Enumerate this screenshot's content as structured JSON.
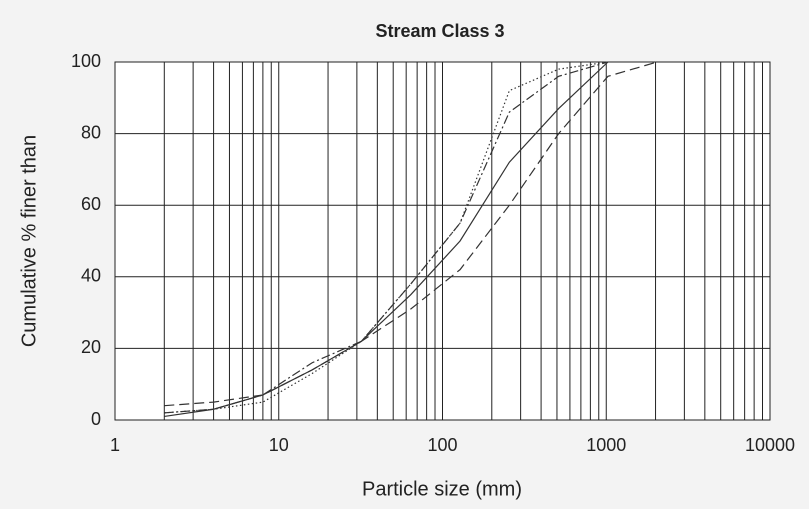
{
  "chart_data": {
    "type": "line",
    "title": "Stream Class 3",
    "x_label": "Particle size (mm)",
    "y_label": "Cumulative % finer than",
    "x": [
      2,
      4,
      8,
      16,
      32,
      64,
      128,
      256,
      512,
      1024,
      2048
    ],
    "series": [
      {
        "color": "#333333",
        "line_style": "solid",
        "values": [
          1,
          3,
          7,
          14,
          22,
          35,
          50,
          72,
          87,
          100,
          null
        ]
      },
      {
        "color": "#333333",
        "line_style": "dashed",
        "values": [
          4,
          5,
          7,
          14,
          22,
          31,
          42,
          60,
          80,
          96,
          100
        ]
      },
      {
        "color": "#333333",
        "line_style": "dotted",
        "values": [
          2,
          3,
          5,
          13,
          22,
          38,
          55,
          92,
          98,
          100,
          null
        ]
      },
      {
        "color": "#333333",
        "line_style": "dashdot",
        "values": [
          2,
          3,
          7,
          16,
          22,
          38,
          55,
          86,
          96,
          100,
          null
        ]
      }
    ],
    "x_log": true,
    "xlim": [
      1,
      10000
    ],
    "xticks": [
      1,
      10,
      100,
      1000,
      10000
    ],
    "ylim": [
      0,
      100
    ],
    "yticks": [
      0,
      20,
      40,
      60,
      80,
      100
    ],
    "grid": true,
    "minor_grid": true
  }
}
